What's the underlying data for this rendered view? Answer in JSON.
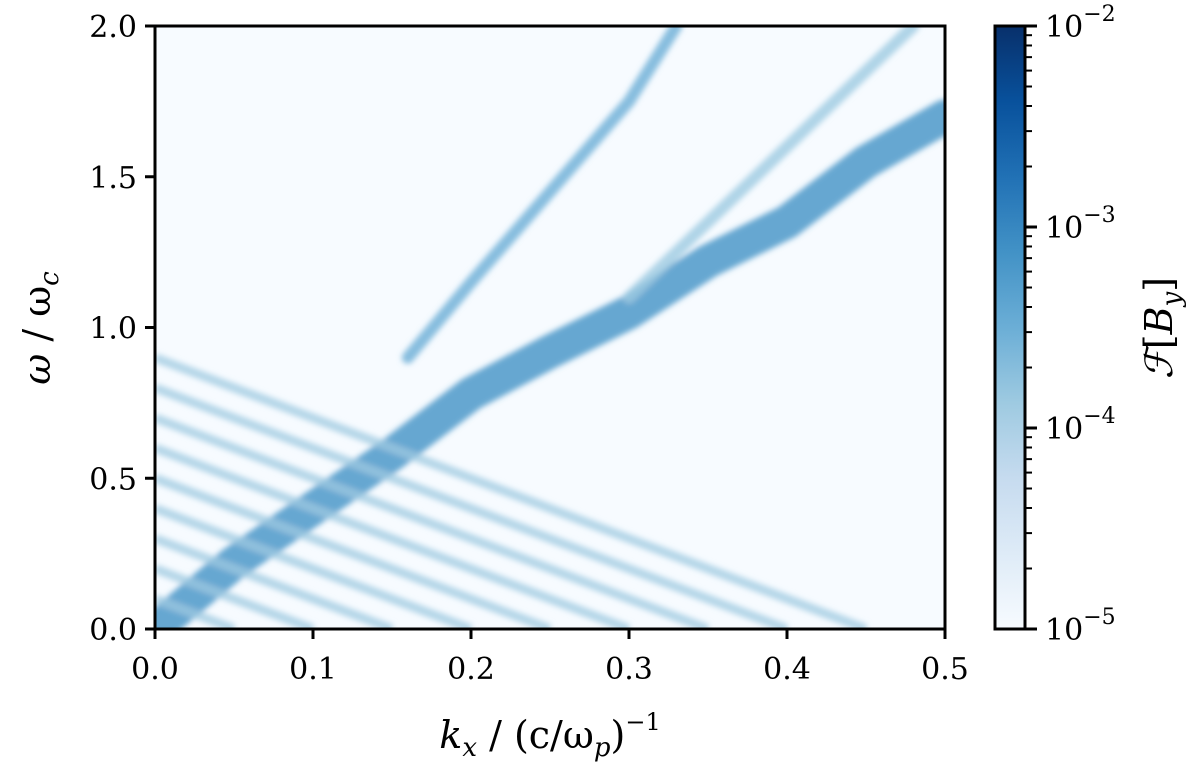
{
  "chart_data": {
    "type": "heatmap",
    "title": "",
    "xlabel": "k_x / (c/ω_p)^{-1}",
    "ylabel": "ω / ω_c",
    "colorbar_label": "ℱ[B_y]",
    "xlim": [
      0.0,
      0.5
    ],
    "ylim": [
      0.0,
      2.0
    ],
    "x_ticks": [
      "0.0",
      "0.1",
      "0.2",
      "0.3",
      "0.4",
      "0.5"
    ],
    "y_ticks": [
      "0.0",
      "0.5",
      "1.0",
      "1.5",
      "2.0"
    ],
    "colorbar_ticks": [
      {
        "base": "10",
        "exp": "−2"
      },
      {
        "base": "10",
        "exp": "−3"
      },
      {
        "base": "10",
        "exp": "−4"
      },
      {
        "base": "10",
        "exp": "−5"
      }
    ],
    "color_scale": "log",
    "colorbar_range": [
      1e-05,
      0.01
    ],
    "colormap": [
      "#f7fbff",
      "#deebf7",
      "#c6dbef",
      "#9ecae1",
      "#6baed6",
      "#4292c6",
      "#2171b5",
      "#08519c",
      "#08306b"
    ],
    "features": [
      {
        "name": "main branch",
        "points": [
          [
            0.0,
            0.0
          ],
          [
            0.05,
            0.22
          ],
          [
            0.1,
            0.4
          ],
          [
            0.15,
            0.58
          ],
          [
            0.2,
            0.78
          ],
          [
            0.25,
            0.92
          ],
          [
            0.3,
            1.05
          ],
          [
            0.35,
            1.22
          ],
          [
            0.4,
            1.35
          ],
          [
            0.45,
            1.55
          ],
          [
            0.5,
            1.7
          ]
        ],
        "amplitude": 0.001
      },
      {
        "name": "light line",
        "points": [
          [
            0.16,
            0.9
          ],
          [
            0.2,
            1.15
          ],
          [
            0.25,
            1.45
          ],
          [
            0.3,
            1.75
          ],
          [
            0.33,
            2.0
          ]
        ],
        "amplitude": 0.0003
      },
      {
        "name": "upper branch",
        "points": [
          [
            0.3,
            1.1
          ],
          [
            0.35,
            1.35
          ],
          [
            0.4,
            1.6
          ],
          [
            0.45,
            1.85
          ],
          [
            0.48,
            2.0
          ]
        ],
        "amplitude": 0.0002
      },
      {
        "name": "descending stripes",
        "start_omega": [
          0.1,
          0.2,
          0.3,
          0.4,
          0.5,
          0.6,
          0.7,
          0.8,
          0.9
        ],
        "slope": -2.0,
        "amplitude": 0.0002
      }
    ]
  }
}
